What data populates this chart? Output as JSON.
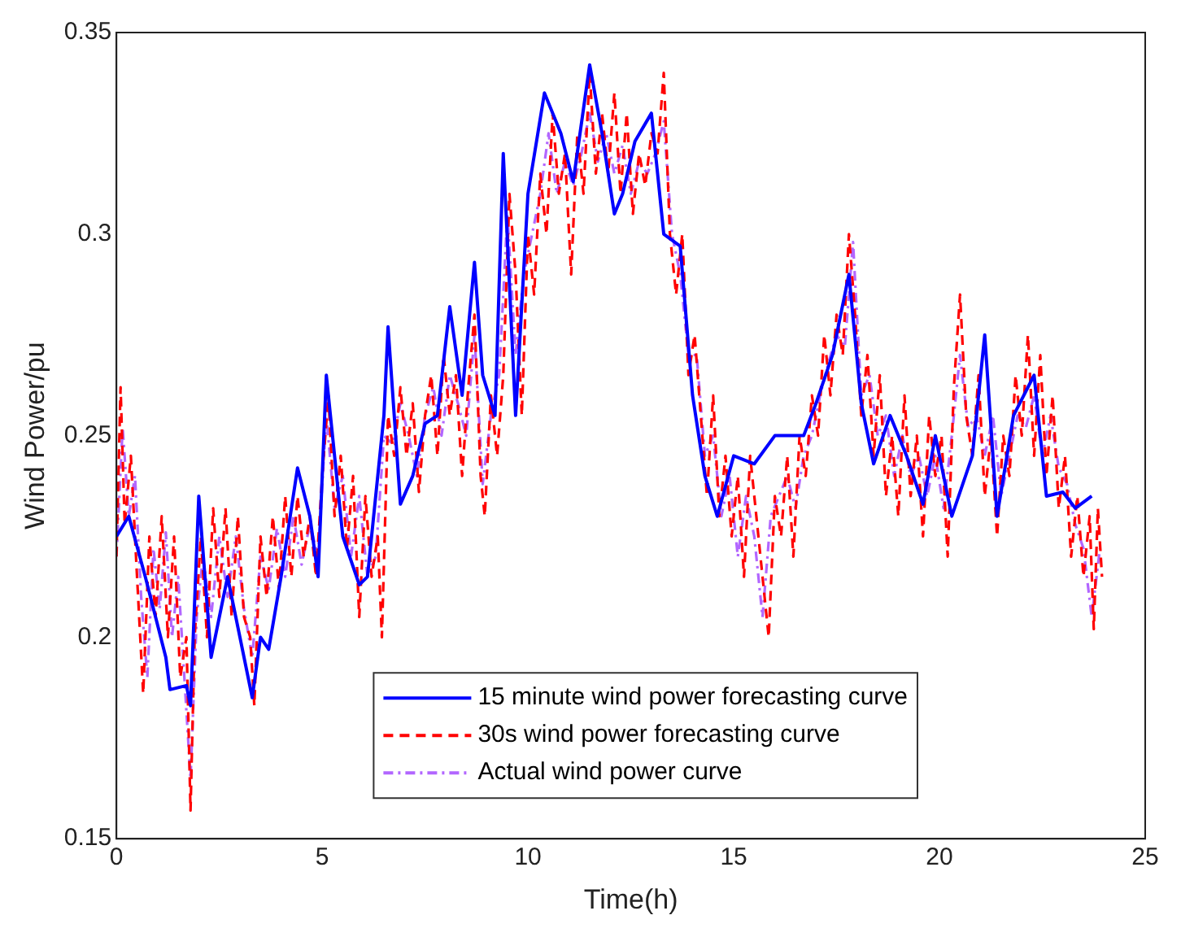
{
  "chart_data": {
    "type": "line",
    "xlabel": "Time(h)",
    "ylabel": "Wind Power/pu",
    "xlim": [
      0,
      25
    ],
    "xticks": [
      0,
      5,
      10,
      15,
      20,
      25
    ],
    "ylim": [
      0.15,
      0.35
    ],
    "yticks": [
      0.15,
      0.2,
      0.25,
      0.3,
      0.35
    ],
    "grid": false,
    "legend": "bottom",
    "marker": "none",
    "series": [
      {
        "name": "15 minute wind power forecasting curve",
        "color": "#0000ff",
        "line_style": "solid",
        "x": [
          0,
          0.3,
          0.7,
          1.2,
          1.3,
          1.7,
          1.8,
          2.0,
          2.3,
          2.7,
          3.0,
          3.3,
          3.5,
          3.7,
          4.0,
          4.4,
          4.7,
          4.9,
          5.1,
          5.5,
          5.9,
          6.1,
          6.5,
          6.6,
          6.9,
          7.2,
          7.5,
          7.8,
          8.1,
          8.4,
          8.7,
          8.9,
          9.2,
          9.4,
          9.7,
          10.0,
          10.4,
          10.8,
          11.1,
          11.5,
          11.8,
          12.1,
          12.3,
          12.6,
          13.0,
          13.3,
          13.7,
          14.0,
          14.3,
          14.6,
          15.0,
          15.5,
          16.0,
          16.3,
          16.7,
          17.0,
          17.4,
          17.8,
          18.1,
          18.4,
          18.8,
          19.2,
          19.6,
          19.9,
          20.3,
          20.8,
          21.1,
          21.4,
          21.8,
          22.3,
          22.6,
          23.0,
          23.3,
          23.7
        ],
        "values": [
          0.225,
          0.23,
          0.215,
          0.195,
          0.187,
          0.188,
          0.183,
          0.235,
          0.195,
          0.215,
          0.2,
          0.185,
          0.2,
          0.197,
          0.215,
          0.242,
          0.23,
          0.215,
          0.265,
          0.225,
          0.213,
          0.215,
          0.255,
          0.277,
          0.233,
          0.24,
          0.253,
          0.255,
          0.282,
          0.26,
          0.293,
          0.265,
          0.255,
          0.32,
          0.255,
          0.31,
          0.335,
          0.325,
          0.313,
          0.342,
          0.325,
          0.305,
          0.31,
          0.323,
          0.33,
          0.3,
          0.297,
          0.26,
          0.24,
          0.23,
          0.245,
          0.243,
          0.25,
          0.25,
          0.25,
          0.258,
          0.27,
          0.29,
          0.258,
          0.243,
          0.255,
          0.245,
          0.233,
          0.25,
          0.23,
          0.245,
          0.275,
          0.23,
          0.255,
          0.265,
          0.235,
          0.236,
          0.232,
          0.235
        ]
      },
      {
        "name": "30s wind power forecasting curve",
        "color": "#ff0000",
        "line_style": "dashed",
        "x": [
          0,
          0.1,
          0.2,
          0.35,
          0.5,
          0.65,
          0.8,
          0.95,
          1.1,
          1.25,
          1.4,
          1.55,
          1.7,
          1.8,
          1.9,
          2.05,
          2.2,
          2.35,
          2.5,
          2.65,
          2.8,
          2.95,
          3.1,
          3.25,
          3.35,
          3.5,
          3.65,
          3.8,
          3.95,
          4.1,
          4.25,
          4.4,
          4.55,
          4.7,
          4.85,
          5.0,
          5.15,
          5.3,
          5.45,
          5.6,
          5.75,
          5.9,
          6.05,
          6.2,
          6.35,
          6.45,
          6.6,
          6.75,
          6.9,
          7.05,
          7.2,
          7.35,
          7.5,
          7.65,
          7.8,
          7.95,
          8.1,
          8.25,
          8.4,
          8.55,
          8.7,
          8.85,
          8.95,
          9.1,
          9.25,
          9.4,
          9.55,
          9.7,
          9.85,
          10.0,
          10.15,
          10.3,
          10.45,
          10.6,
          10.75,
          10.9,
          11.05,
          11.2,
          11.35,
          11.5,
          11.65,
          11.8,
          11.95,
          12.1,
          12.25,
          12.4,
          12.55,
          12.7,
          12.85,
          13.0,
          13.15,
          13.3,
          13.45,
          13.6,
          13.75,
          13.9,
          14.05,
          14.2,
          14.35,
          14.5,
          14.65,
          14.8,
          14.95,
          15.1,
          15.25,
          15.4,
          15.55,
          15.7,
          15.85,
          16.0,
          16.15,
          16.3,
          16.45,
          16.6,
          16.75,
          16.9,
          17.05,
          17.2,
          17.35,
          17.5,
          17.65,
          17.8,
          17.95,
          18.1,
          18.25,
          18.4,
          18.55,
          18.7,
          18.85,
          19.0,
          19.15,
          19.3,
          19.45,
          19.6,
          19.75,
          19.9,
          20.05,
          20.2,
          20.35,
          20.5,
          20.65,
          20.8,
          20.95,
          21.1,
          21.25,
          21.4,
          21.55,
          21.7,
          21.85,
          22.0,
          22.15,
          22.3,
          22.45,
          22.6,
          22.75,
          22.9,
          23.05,
          23.2,
          23.35,
          23.5,
          23.65,
          23.75,
          23.85,
          23.95
        ],
        "values": [
          0.22,
          0.262,
          0.228,
          0.245,
          0.215,
          0.186,
          0.225,
          0.205,
          0.23,
          0.2,
          0.225,
          0.19,
          0.2,
          0.157,
          0.2,
          0.225,
          0.2,
          0.232,
          0.21,
          0.232,
          0.205,
          0.23,
          0.205,
          0.2,
          0.183,
          0.225,
          0.21,
          0.23,
          0.212,
          0.235,
          0.215,
          0.235,
          0.22,
          0.23,
          0.215,
          0.24,
          0.26,
          0.23,
          0.245,
          0.222,
          0.24,
          0.205,
          0.235,
          0.215,
          0.225,
          0.2,
          0.255,
          0.245,
          0.262,
          0.245,
          0.258,
          0.236,
          0.255,
          0.265,
          0.245,
          0.27,
          0.255,
          0.265,
          0.24,
          0.262,
          0.28,
          0.24,
          0.23,
          0.26,
          0.245,
          0.265,
          0.31,
          0.29,
          0.255,
          0.3,
          0.285,
          0.315,
          0.3,
          0.33,
          0.31,
          0.32,
          0.29,
          0.325,
          0.31,
          0.34,
          0.315,
          0.33,
          0.315,
          0.335,
          0.31,
          0.33,
          0.305,
          0.32,
          0.312,
          0.325,
          0.32,
          0.34,
          0.3,
          0.285,
          0.3,
          0.265,
          0.275,
          0.255,
          0.235,
          0.26,
          0.23,
          0.245,
          0.225,
          0.24,
          0.215,
          0.245,
          0.23,
          0.215,
          0.2,
          0.235,
          0.225,
          0.245,
          0.22,
          0.25,
          0.24,
          0.26,
          0.25,
          0.275,
          0.26,
          0.28,
          0.27,
          0.3,
          0.28,
          0.255,
          0.27,
          0.245,
          0.265,
          0.235,
          0.25,
          0.23,
          0.26,
          0.235,
          0.25,
          0.225,
          0.255,
          0.24,
          0.25,
          0.22,
          0.262,
          0.285,
          0.255,
          0.245,
          0.265,
          0.235,
          0.25,
          0.225,
          0.25,
          0.24,
          0.265,
          0.25,
          0.275,
          0.245,
          0.27,
          0.24,
          0.26,
          0.232,
          0.245,
          0.22,
          0.235,
          0.215,
          0.23,
          0.202,
          0.232,
          0.215
        ]
      },
      {
        "name": "Actual wind power curve",
        "color": "#b266ff",
        "line_style": "dashdot",
        "x": [
          0,
          0.15,
          0.3,
          0.45,
          0.6,
          0.75,
          0.9,
          1.05,
          1.2,
          1.35,
          1.5,
          1.65,
          1.8,
          1.95,
          2.1,
          2.3,
          2.5,
          2.7,
          2.9,
          3.1,
          3.3,
          3.5,
          3.7,
          3.9,
          4.1,
          4.3,
          4.5,
          4.7,
          4.9,
          5.1,
          5.3,
          5.5,
          5.7,
          5.9,
          6.1,
          6.3,
          6.5,
          6.7,
          6.9,
          7.1,
          7.3,
          7.5,
          7.7,
          7.9,
          8.1,
          8.3,
          8.5,
          8.7,
          8.9,
          9.1,
          9.3,
          9.5,
          9.7,
          9.9,
          10.1,
          10.3,
          10.5,
          10.7,
          10.9,
          11.1,
          11.3,
          11.5,
          11.7,
          11.9,
          12.1,
          12.3,
          12.5,
          12.7,
          12.9,
          13.1,
          13.3,
          13.5,
          13.7,
          13.9,
          14.1,
          14.3,
          14.5,
          14.7,
          14.9,
          15.1,
          15.3,
          15.5,
          15.7,
          15.9,
          16.1,
          16.3,
          16.5,
          16.7,
          16.9,
          17.1,
          17.3,
          17.5,
          17.7,
          17.9,
          18.1,
          18.3,
          18.5,
          18.7,
          18.9,
          19.1,
          19.3,
          19.5,
          19.7,
          19.9,
          20.1,
          20.3,
          20.5,
          20.7,
          20.9,
          21.1,
          21.3,
          21.5,
          21.7,
          21.9,
          22.1,
          22.3,
          22.5,
          22.7,
          22.9,
          23.1,
          23.3,
          23.5,
          23.7,
          23.9
        ],
        "values": [
          0.22,
          0.252,
          0.23,
          0.24,
          0.21,
          0.19,
          0.222,
          0.207,
          0.226,
          0.2,
          0.215,
          0.19,
          0.165,
          0.205,
          0.22,
          0.205,
          0.225,
          0.21,
          0.225,
          0.207,
          0.195,
          0.22,
          0.212,
          0.227,
          0.215,
          0.23,
          0.218,
          0.228,
          0.22,
          0.255,
          0.232,
          0.24,
          0.22,
          0.235,
          0.215,
          0.22,
          0.25,
          0.248,
          0.258,
          0.25,
          0.24,
          0.255,
          0.262,
          0.25,
          0.265,
          0.258,
          0.25,
          0.275,
          0.238,
          0.255,
          0.265,
          0.305,
          0.27,
          0.29,
          0.3,
          0.31,
          0.325,
          0.31,
          0.318,
          0.312,
          0.32,
          0.33,
          0.318,
          0.325,
          0.315,
          0.322,
          0.31,
          0.318,
          0.315,
          0.32,
          0.328,
          0.3,
          0.29,
          0.27,
          0.27,
          0.245,
          0.25,
          0.23,
          0.24,
          0.22,
          0.235,
          0.225,
          0.205,
          0.23,
          0.235,
          0.24,
          0.232,
          0.245,
          0.25,
          0.26,
          0.268,
          0.275,
          0.272,
          0.298,
          0.26,
          0.265,
          0.25,
          0.255,
          0.24,
          0.25,
          0.24,
          0.245,
          0.235,
          0.245,
          0.232,
          0.25,
          0.27,
          0.252,
          0.255,
          0.245,
          0.255,
          0.235,
          0.245,
          0.255,
          0.252,
          0.26,
          0.245,
          0.255,
          0.242,
          0.238,
          0.228,
          0.222,
          0.205,
          0.222
        ]
      }
    ]
  }
}
